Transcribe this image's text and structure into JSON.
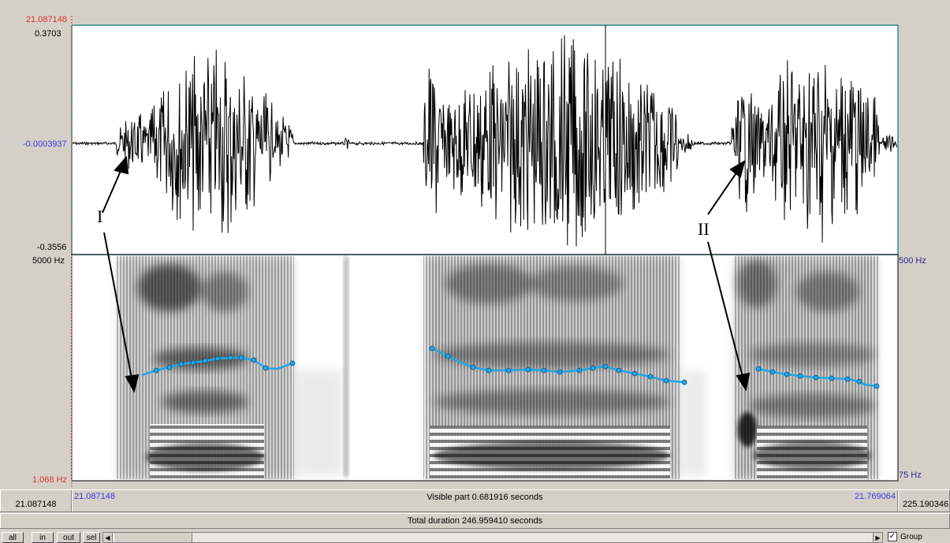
{
  "cursor": {
    "time_top": "21.087148",
    "left_time": "21.087148"
  },
  "waveform": {
    "max_label": "0.3703",
    "mid_label": "-0.0003937",
    "min_label": "-0.3556"
  },
  "spectrogram": {
    "max_freq_label": "5000 Hz",
    "min_freq_label": "1.068 Hz",
    "pitch_max_label": "500 Hz",
    "pitch_min_label": "75 Hz"
  },
  "window": {
    "start_label": "21.087148",
    "end_label": "21.769064",
    "right_time": "225.190346",
    "visible_part": "Visible part 0.681916 seconds",
    "total_duration": "Total duration 246.959410 seconds"
  },
  "controls": {
    "all": "all",
    "in": "in",
    "out": "out",
    "sel": "sel",
    "group_label": "Group",
    "group_checked": true
  },
  "annotations": {
    "label_1": "I",
    "label_2": "II"
  },
  "colors": {
    "pitch": "#1ea8e8",
    "cursor_red": "#e03030",
    "axis_blue": "#3a3ae0",
    "frame": "#2a8a8a"
  },
  "icons": {
    "scroll_left": "triangle-left-icon",
    "scroll_right": "triangle-right-icon",
    "checkbox": "checkbox-checked-icon"
  }
}
